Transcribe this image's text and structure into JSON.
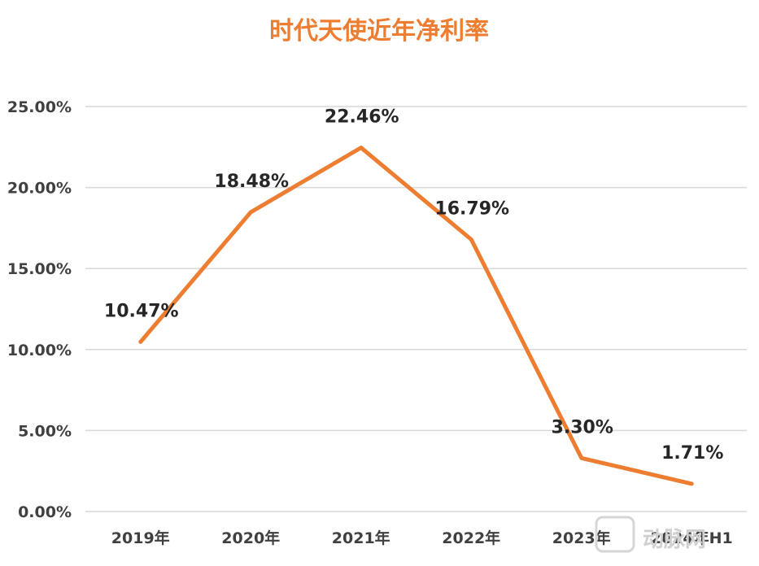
{
  "chart_data": {
    "type": "line",
    "title": "时代天使近年净利率",
    "categories": [
      "2019年",
      "2020年",
      "2021年",
      "2022年",
      "2023年",
      "2024年H1"
    ],
    "series": [
      {
        "values": [
          10.47,
          18.48,
          22.46,
          16.79,
          3.3,
          1.71
        ],
        "labels": [
          "10.47%",
          "18.48%",
          "22.46%",
          "16.79%",
          "3.30%",
          "1.71%"
        ]
      }
    ],
    "yticks": [
      "0.00%",
      "5.00%",
      "10.00%",
      "15.00%",
      "20.00%",
      "25.00%"
    ],
    "ylim": [
      0,
      25
    ],
    "grid": true,
    "legend": "none",
    "line_color": "#ED7D31"
  },
  "watermark": {
    "text": "动脉网"
  }
}
